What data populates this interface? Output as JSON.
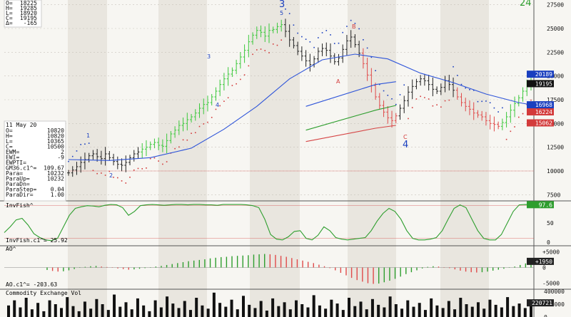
{
  "colors": {
    "background": "#f7f6f2",
    "shade": "#e9e6df",
    "up_bar": "#3cc83c",
    "down_bar": "#e04a4a",
    "neutral_bar": "#222222",
    "psar_up": "#d33b3b",
    "psar_down": "#1a3fbf",
    "ma_blue": "#2f55d9",
    "ma_green": "#2e9e2e",
    "ma_red": "#d64545",
    "osc_green": "#2e9e2e",
    "wave_label": "#1a3fbf"
  },
  "top_counter": "24",
  "left_readout_top": {
    "lines": [
      {
        "label": "O=",
        "value": "18225"
      },
      {
        "label": "H=",
        "value": "19285"
      },
      {
        "label": "L=",
        "value": "18920"
      },
      {
        "label": "C=",
        "value": "19195"
      },
      {
        "label": "Δ=",
        "value": "-165"
      }
    ]
  },
  "left_readout_mid": {
    "date": "11 May 20",
    "lines": [
      {
        "label": "O=",
        "value": "10820"
      },
      {
        "label": "H=",
        "value": "10820"
      },
      {
        "label": "L=",
        "value": "10365"
      },
      {
        "label": "C=",
        "value": "10500"
      },
      {
        "label": "EWM=",
        "value": "2"
      },
      {
        "label": "EWI=",
        "value": "-9"
      },
      {
        "label": "EWPTI=",
        "value": ""
      },
      {
        "label": "GM36.c1^=",
        "value": "109.67"
      },
      {
        "label": "Para=",
        "value": "10232"
      },
      {
        "label": "ParaUp=",
        "value": "10232"
      },
      {
        "label": "ParaDn=",
        "value": ""
      },
      {
        "label": "ParaStep=",
        "value": "0.04"
      },
      {
        "label": "ParaDir=",
        "value": "1.00"
      }
    ]
  },
  "price_badges": [
    {
      "text": "20189",
      "bg": "#1a3fbf",
      "fg": "#ffffff"
    },
    {
      "text": "19195",
      "bg": "#111111",
      "fg": "#ffffff"
    },
    {
      "text": "16968",
      "bg": "#1a3fbf",
      "fg": "#ffffff"
    },
    {
      "text": "16224",
      "bg": "#d33b3b",
      "fg": "#ffffff"
    },
    {
      "text": "15062",
      "bg": "#d33b3b",
      "fg": "#ffffff"
    }
  ],
  "wave_labels": {
    "big3": "3",
    "small5": "5",
    "small3": "3",
    "small4": "4",
    "small1": "1",
    "small2": "2",
    "big4": "4",
    "A": "A",
    "B": "B",
    "C": "C"
  },
  "panels": {
    "invfish_title": "InvFish^",
    "invfish_sub": "InvFish.c1^= 25.92",
    "invfish_badge": "97.6",
    "ao_title": "AO^",
    "ao_sub": "AO.c1^= -203.63",
    "ao_badge": "+1950",
    "vol_title": "Commodity Exchange Vol",
    "vol_badge": "220721"
  },
  "chart_data": [
    {
      "type": "candlestick",
      "name": "price",
      "ylim": [
        7000,
        28000
      ],
      "yticks": [
        7500,
        10000,
        12500,
        15000,
        17500,
        20000,
        22500,
        25000,
        27500
      ],
      "ohlc_close": [
        9800,
        10100,
        10450,
        10900,
        11200,
        11600,
        11800,
        11500,
        11300,
        11800,
        11400,
        11000,
        10700,
        10600,
        10900,
        11400,
        11800,
        12000,
        12300,
        12500,
        12800,
        13000,
        12700,
        12600,
        13200,
        13900,
        14300,
        14800,
        15000,
        15400,
        15700,
        16100,
        16600,
        17000,
        17200,
        17800,
        18400,
        19100,
        19700,
        20200,
        20600,
        21300,
        22000,
        22700,
        23600,
        24300,
        24800,
        24600,
        24200,
        24800,
        24900,
        25200,
        25400,
        24700,
        23800,
        23200,
        22600,
        22100,
        21600,
        21200,
        21800,
        22600,
        22900,
        22700,
        22100,
        21500,
        21900,
        22800,
        23700,
        24100,
        23300,
        22400,
        21300,
        20100,
        19000,
        17800,
        16900,
        16200,
        15600,
        15300,
        15800,
        16600,
        17400,
        18300,
        18900,
        19400,
        19700,
        19500,
        19100,
        18600,
        18400,
        18800,
        19500,
        19100,
        18500,
        17800,
        17200,
        16800,
        16500,
        16100,
        15900,
        15700,
        15300,
        15000,
        14900,
        14700,
        15100,
        15700,
        16400,
        17100,
        17700,
        18400,
        19100,
        19195
      ],
      "indicator_lines": [
        {
          "name": "ma_blue",
          "points": [
            [
              0,
              11200
            ],
            [
              10,
              11100
            ],
            [
              20,
              11400
            ],
            [
              30,
              12400
            ],
            [
              38,
              14400
            ],
            [
              46,
              16800
            ],
            [
              54,
              19700
            ],
            [
              62,
              21700
            ],
            [
              70,
              22300
            ],
            [
              78,
              21800
            ],
            [
              86,
              20300
            ],
            [
              94,
              19300
            ],
            [
              102,
              18100
            ],
            [
              110,
              17200
            ],
            [
              113,
              16968
            ]
          ]
        },
        {
          "name": "ma_green",
          "points": [
            [
              58,
              14300
            ],
            [
              75,
              16400
            ],
            [
              80,
              16900
            ]
          ]
        },
        {
          "name": "ma_red",
          "points": [
            [
              58,
              13100
            ],
            [
              75,
              14500
            ],
            [
              80,
              14800
            ]
          ]
        },
        {
          "name": "ma_blue_short",
          "points": [
            [
              58,
              16800
            ],
            [
              75,
              19100
            ],
            [
              80,
              19400
            ]
          ]
        }
      ]
    },
    {
      "type": "line",
      "name": "InvFish",
      "ylim": [
        0,
        100
      ],
      "yticks": [
        0,
        50
      ],
      "values": [
        25,
        40,
        58,
        62,
        45,
        22,
        12,
        6,
        4,
        10,
        40,
        70,
        88,
        92,
        95,
        94,
        92,
        96,
        98,
        97,
        90,
        70,
        80,
        95,
        97,
        98,
        97,
        96,
        97,
        98,
        98,
        97,
        98,
        98,
        97,
        97,
        96,
        98,
        98,
        98,
        98,
        97,
        95,
        90,
        60,
        20,
        8,
        6,
        14,
        28,
        30,
        10,
        6,
        18,
        40,
        30,
        12,
        8,
        6,
        8,
        10,
        12,
        30,
        55,
        75,
        88,
        80,
        60,
        30,
        10,
        6,
        6,
        8,
        12,
        30,
        60,
        88,
        97,
        90,
        60,
        30,
        10,
        6,
        6,
        20,
        50,
        80,
        97,
        98,
        97.6
      ],
      "reference_lines": [
        95,
        10
      ]
    },
    {
      "type": "bar",
      "name": "AO",
      "ylim": [
        -6000,
        6000
      ],
      "yticks": [
        -5000,
        0,
        5000
      ],
      "values": [
        -800,
        -1100,
        -1300,
        -1200,
        -900,
        -500,
        -100,
        200,
        400,
        500,
        300,
        150,
        -100,
        -300,
        -500,
        -700,
        -600,
        -400,
        -200,
        100,
        300,
        500,
        800,
        1100,
        1400,
        1700,
        2000,
        2200,
        2400,
        2600,
        2900,
        3100,
        3300,
        3400,
        3600,
        3700,
        3800,
        3900,
        4100,
        4200,
        4300,
        4200,
        4000,
        3700,
        3400,
        3000,
        2600,
        2200,
        1800,
        1400,
        900,
        400,
        -200,
        -900,
        -1700,
        -2500,
        -3300,
        -4000,
        -4500,
        -5000,
        -5200,
        -5100,
        -4700,
        -4200,
        -3600,
        -2900,
        -2100,
        -1500,
        -900,
        -300,
        200,
        400,
        300,
        100,
        -200,
        -600,
        -1000,
        -1300,
        -1500,
        -1600,
        -1500,
        -1300,
        -1000,
        -700,
        -400,
        -100,
        300,
        800,
        1300,
        1950
      ]
    },
    {
      "type": "bar",
      "name": "Volume",
      "ylim": [
        0,
        400000
      ],
      "yticks": [
        0,
        200000,
        400000
      ],
      "values": [
        180000,
        260000,
        150000,
        300000,
        120000,
        220000,
        90000,
        260000,
        200000,
        140000,
        310000,
        170000,
        90000,
        240000,
        130000,
        280000,
        200000,
        110000,
        350000,
        160000,
        230000,
        120000,
        290000,
        180000,
        90000,
        260000,
        150000,
        320000,
        210000,
        140000,
        250000,
        110000,
        300000,
        180000,
        130000,
        380000,
        220000,
        160000,
        270000,
        120000,
        330000,
        190000,
        140000,
        250000,
        100000,
        290000,
        170000,
        230000,
        120000,
        260000,
        200000,
        150000,
        340000,
        180000,
        130000,
        270000,
        210000,
        110000,
        300000,
        170000,
        240000,
        120000,
        280000,
        190000,
        150000,
        320000,
        200000,
        130000,
        260000,
        160000,
        220000,
        110000,
        290000,
        180000,
        140000,
        250000,
        120000,
        300000,
        200000,
        160000,
        230000,
        130000,
        270000,
        190000,
        150000,
        310000,
        170000,
        210000,
        140000,
        220721
      ]
    }
  ]
}
